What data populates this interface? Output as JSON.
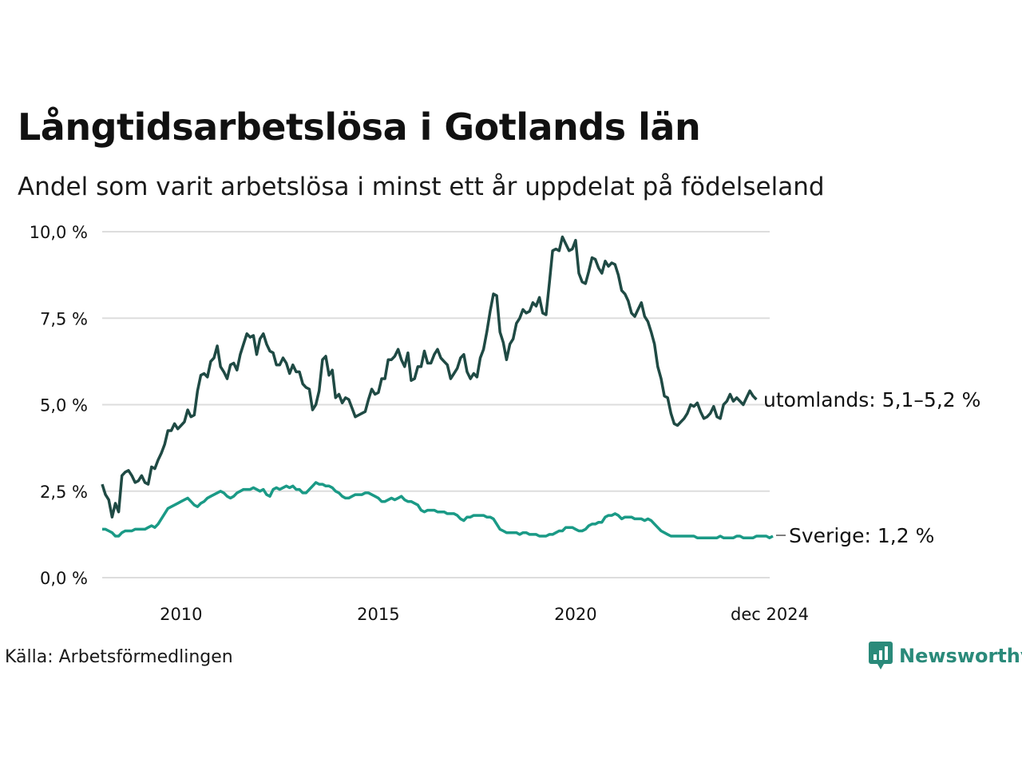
{
  "title": "Långtidsarbetslösa i Gotlands län",
  "subtitle": "Andel som varit arbetslösa i minst ett år uppdelat på födelseland",
  "source": "Källa: Arbetsförmedlingen",
  "brand": {
    "name": "Newsworthy",
    "color": "#2a8a7a",
    "icon": "chart-bubble-icon"
  },
  "colors": {
    "grid": "#dddddd",
    "utomlands": "#1f4a44",
    "sverige": "#1a9a86"
  },
  "chart_data": {
    "type": "line",
    "title": "Långtidsarbetslösa i Gotlands län",
    "xlabel": "",
    "ylabel": "",
    "x_start": 2008.0,
    "x_step_months": 1,
    "xlim": [
      2008.0,
      2024.92
    ],
    "ylim": [
      0,
      10
    ],
    "yticks": [
      0,
      2.5,
      5.0,
      7.5,
      10.0
    ],
    "ytick_labels": [
      "0,0 %",
      "2,5 %",
      "5,0 %",
      "7,5 %",
      "10,0 %"
    ],
    "xticks": [
      2010.0,
      2015.0,
      2020.0,
      2024.92
    ],
    "xtick_labels": [
      "2010",
      "2015",
      "2020",
      "dec 2024"
    ],
    "grid": true,
    "series": [
      {
        "name": "utomlands",
        "end_label": "utomlands: 5,1–5,2 %",
        "values": [
          2.7,
          2.4,
          2.25,
          1.75,
          2.15,
          1.9,
          2.95,
          3.05,
          3.1,
          2.95,
          2.75,
          2.8,
          2.95,
          2.75,
          2.7,
          3.2,
          3.15,
          3.4,
          3.6,
          3.85,
          4.25,
          4.25,
          4.45,
          4.3,
          4.4,
          4.5,
          4.85,
          4.65,
          4.7,
          5.4,
          5.85,
          5.9,
          5.8,
          6.25,
          6.35,
          6.7,
          6.1,
          5.95,
          5.75,
          6.15,
          6.2,
          6.0,
          6.45,
          6.75,
          7.05,
          6.95,
          7.0,
          6.45,
          6.9,
          7.05,
          6.75,
          6.55,
          6.5,
          6.15,
          6.15,
          6.35,
          6.2,
          5.9,
          6.15,
          5.95,
          5.95,
          5.6,
          5.5,
          5.45,
          4.85,
          5.0,
          5.4,
          6.3,
          6.4,
          5.85,
          6.0,
          5.2,
          5.3,
          5.05,
          5.2,
          5.15,
          4.9,
          4.65,
          4.7,
          4.75,
          4.8,
          5.15,
          5.45,
          5.3,
          5.35,
          5.75,
          5.75,
          6.3,
          6.3,
          6.4,
          6.6,
          6.3,
          6.1,
          6.5,
          5.7,
          5.75,
          6.1,
          6.1,
          6.55,
          6.2,
          6.2,
          6.45,
          6.6,
          6.35,
          6.25,
          6.15,
          5.75,
          5.9,
          6.05,
          6.35,
          6.45,
          5.95,
          5.75,
          5.9,
          5.8,
          6.35,
          6.6,
          7.1,
          7.7,
          8.2,
          8.15,
          7.1,
          6.8,
          6.3,
          6.75,
          6.9,
          7.35,
          7.5,
          7.75,
          7.65,
          7.7,
          7.95,
          7.85,
          8.1,
          7.65,
          7.6,
          8.5,
          9.45,
          9.5,
          9.45,
          9.85,
          9.65,
          9.45,
          9.5,
          9.75,
          8.8,
          8.55,
          8.5,
          8.85,
          9.25,
          9.2,
          8.95,
          8.8,
          9.15,
          9.0,
          9.1,
          9.05,
          8.75,
          8.3,
          8.2,
          8.0,
          7.65,
          7.55,
          7.75,
          7.95,
          7.55,
          7.4,
          7.1,
          6.75,
          6.1,
          5.75,
          5.25,
          5.2,
          4.75,
          4.45,
          4.4,
          4.5,
          4.6,
          4.75,
          5.0,
          4.95,
          5.05,
          4.8,
          4.6,
          4.65,
          4.75,
          4.95,
          4.65,
          4.6,
          5.0,
          5.1,
          5.3,
          5.1,
          5.2,
          5.1,
          5.0,
          5.2,
          5.4,
          5.25,
          5.15
        ]
      },
      {
        "name": "Sverige",
        "end_label": "Sverige: 1,2 %",
        "values": [
          1.4,
          1.4,
          1.35,
          1.3,
          1.2,
          1.2,
          1.3,
          1.35,
          1.35,
          1.35,
          1.4,
          1.4,
          1.4,
          1.4,
          1.45,
          1.5,
          1.45,
          1.55,
          1.7,
          1.85,
          2.0,
          2.05,
          2.1,
          2.15,
          2.2,
          2.25,
          2.3,
          2.2,
          2.1,
          2.05,
          2.15,
          2.2,
          2.3,
          2.35,
          2.4,
          2.45,
          2.5,
          2.45,
          2.35,
          2.3,
          2.35,
          2.45,
          2.5,
          2.55,
          2.55,
          2.55,
          2.6,
          2.55,
          2.5,
          2.55,
          2.4,
          2.35,
          2.55,
          2.6,
          2.55,
          2.6,
          2.65,
          2.6,
          2.65,
          2.55,
          2.55,
          2.45,
          2.45,
          2.55,
          2.65,
          2.75,
          2.7,
          2.7,
          2.65,
          2.65,
          2.6,
          2.5,
          2.45,
          2.35,
          2.3,
          2.3,
          2.35,
          2.4,
          2.4,
          2.4,
          2.45,
          2.45,
          2.4,
          2.35,
          2.3,
          2.2,
          2.2,
          2.25,
          2.3,
          2.25,
          2.3,
          2.35,
          2.25,
          2.2,
          2.2,
          2.15,
          2.1,
          1.95,
          1.9,
          1.95,
          1.95,
          1.95,
          1.9,
          1.9,
          1.9,
          1.85,
          1.85,
          1.85,
          1.8,
          1.7,
          1.65,
          1.75,
          1.75,
          1.8,
          1.8,
          1.8,
          1.8,
          1.75,
          1.75,
          1.7,
          1.55,
          1.4,
          1.35,
          1.3,
          1.3,
          1.3,
          1.3,
          1.25,
          1.3,
          1.3,
          1.25,
          1.25,
          1.25,
          1.2,
          1.2,
          1.2,
          1.25,
          1.25,
          1.3,
          1.35,
          1.35,
          1.45,
          1.45,
          1.45,
          1.4,
          1.35,
          1.35,
          1.4,
          1.5,
          1.55,
          1.55,
          1.6,
          1.6,
          1.75,
          1.8,
          1.8,
          1.85,
          1.8,
          1.7,
          1.75,
          1.75,
          1.75,
          1.7,
          1.7,
          1.7,
          1.65,
          1.7,
          1.65,
          1.55,
          1.45,
          1.35,
          1.3,
          1.25,
          1.2,
          1.2,
          1.2,
          1.2,
          1.2,
          1.2,
          1.2,
          1.2,
          1.15,
          1.15,
          1.15,
          1.15,
          1.15,
          1.15,
          1.15,
          1.2,
          1.15,
          1.15,
          1.15,
          1.15,
          1.2,
          1.2,
          1.15,
          1.15,
          1.15,
          1.15,
          1.2,
          1.2,
          1.2,
          1.2,
          1.15,
          1.2
        ]
      }
    ]
  }
}
